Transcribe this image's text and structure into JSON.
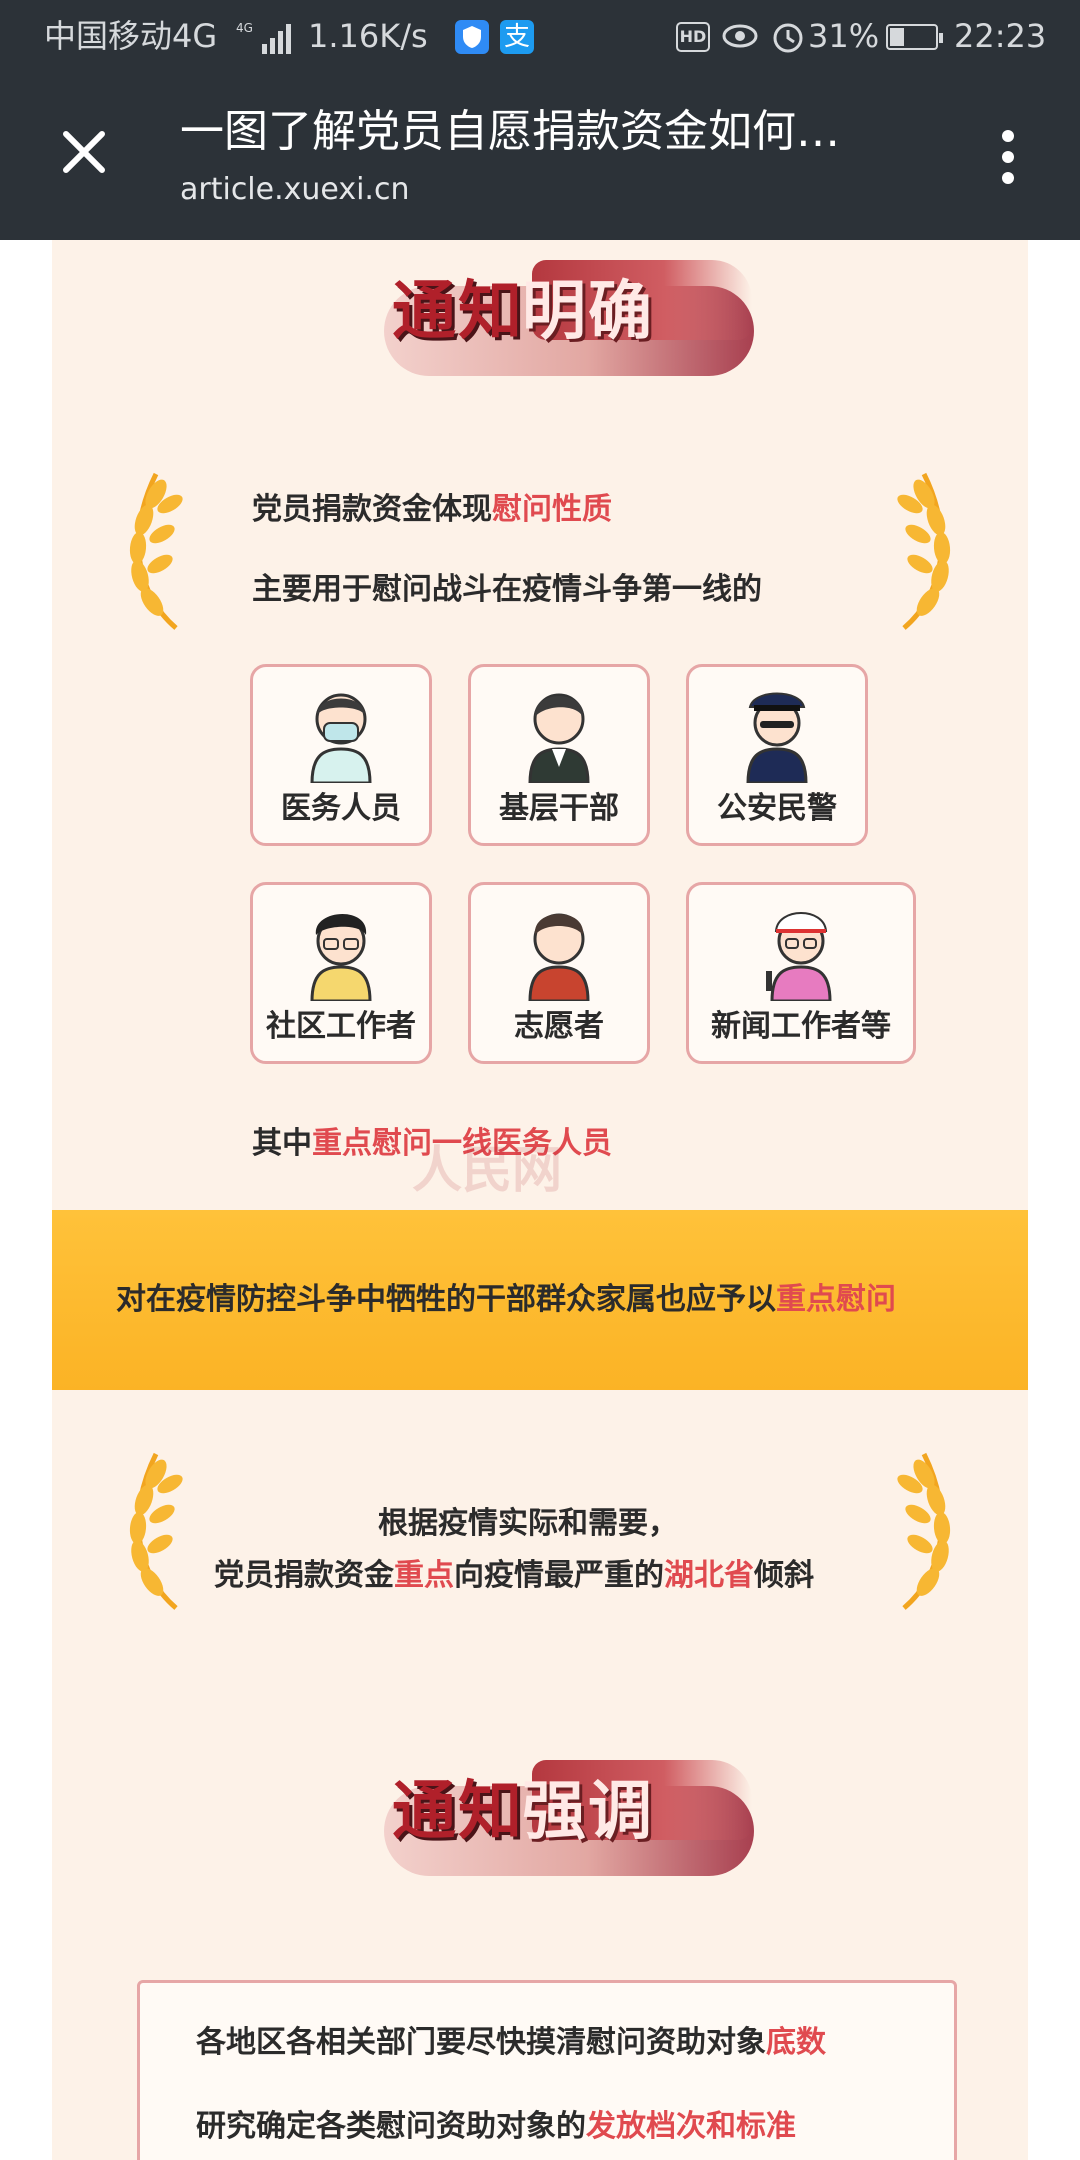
{
  "status_bar": {
    "carrier": "中国移动4G",
    "signal_icon": "signal-icon",
    "speed": "1.16K/s",
    "alipay_glyph": "支",
    "hd": "HD",
    "battery_pct": "31%",
    "battery_level": 0.31,
    "time": "22:23"
  },
  "app_bar": {
    "title": "一图了解党员自愿捐款资金如何…",
    "url": "article.xuexi.cn"
  },
  "section1": {
    "title_a": "通知",
    "title_b": "明确",
    "line1_prefix": "党员捐款资金体现",
    "line1_highlight": "慰问性质",
    "line2": "主要用于慰问战斗在疫情斗争第一线的",
    "cards": [
      {
        "label": "医务人员",
        "icon": "doctor-avatar-icon"
      },
      {
        "label": "基层干部",
        "icon": "cadre-avatar-icon"
      },
      {
        "label": "公安民警",
        "icon": "police-avatar-icon"
      },
      {
        "label": "社区工作者",
        "icon": "community-worker-avatar-icon"
      },
      {
        "label": "志愿者",
        "icon": "volunteer-avatar-icon"
      },
      {
        "label": "新闻工作者等",
        "icon": "journalist-avatar-icon"
      }
    ],
    "focus_prefix": "其中",
    "focus_highlight": "重点慰问一线医务人员",
    "watermark": "人民网"
  },
  "banner": {
    "prefix": "对在疫情防控斗争中牺牲的干部群众家属也应予以",
    "highlight": "重点慰问"
  },
  "hubei": {
    "line1": "根据疫情实际和需要，",
    "line2_a": "党员捐款资金",
    "line2_b": "重点",
    "line2_c": "向疫情最严重的",
    "line2_d": "湖北省",
    "line2_e": "倾斜"
  },
  "section2": {
    "title_a": "通知",
    "title_b": "强调",
    "item1_prefix": "各地区各相关部门要尽快摸清慰问资助对象",
    "item1_highlight": "底数",
    "item2_prefix": "研究确定各类慰问资助对象的",
    "item2_highlight": "发放档次和标准"
  },
  "colors": {
    "panel": "#fdf2e8",
    "highlight": "#e04a4f",
    "banner": "#fbb325",
    "title_red": "#b0202a",
    "bar": "#2c3238"
  }
}
